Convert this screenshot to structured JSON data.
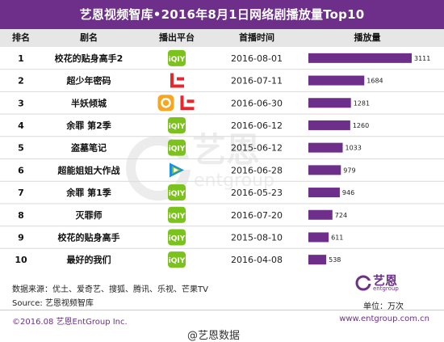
{
  "title": "艺恩视频智库•2016年8月1日网络剧播放量Top10",
  "headers": {
    "rank": "排名",
    "drama": "剧名",
    "platform": "播出平台",
    "date": "首播时间",
    "plays": "播放量"
  },
  "chart_data": {
    "type": "bar",
    "title": "艺恩视频智库•2016年8月1日网络剧播放量Top10",
    "ylabel": "播放量",
    "unit": "万次",
    "ranks": [
      "1",
      "2",
      "3",
      "4",
      "5",
      "6",
      "7",
      "8",
      "9",
      "10"
    ],
    "categories": [
      "校花的贴身高手2",
      "超少年密码",
      "半妖倾城",
      "余罪 第2季",
      "盗墓笔记",
      "超能姐姐大作战",
      "余罪 第1季",
      "灭罪师",
      "校花的贴身高手",
      "最好的我们"
    ],
    "platforms": [
      [
        "iqiyi"
      ],
      [
        "letv"
      ],
      [
        "youku",
        "letv"
      ],
      [
        "iqiyi"
      ],
      [
        "iqiyi"
      ],
      [
        "tencent"
      ],
      [
        "iqiyi"
      ],
      [
        "iqiyi"
      ],
      [
        "iqiyi"
      ],
      [
        "iqiyi"
      ]
    ],
    "dates": [
      "2016-08-01",
      "2016-07-11",
      "2016-06-30",
      "2016-06-12",
      "2015-06-12",
      "2016-06-28",
      "2016-05-23",
      "2016-07-20",
      "2015-08-10",
      "2016-04-08"
    ],
    "values": [
      3111,
      1684,
      1281,
      1260,
      1033,
      979,
      946,
      724,
      611,
      538
    ],
    "bar_color": "#6d2f8a"
  },
  "colors": {
    "accent": "#6d2f8a",
    "header_bg": "#e6e6e6",
    "iqiyi": "#7cc21c",
    "letv": "#e8262b",
    "youku": "#f5a623",
    "tencent_blue": "#1a8fe3"
  },
  "footer": {
    "source_label": "数据来源：优土、爱奇艺、搜狐、腾讯、乐视、芒果TV",
    "source_en": "Source: 艺恩视频智库",
    "unit": "单位：万次",
    "copyright": "©2016.08 艺恩EntGroup Inc.",
    "website": "www.entgroup.com.cn",
    "weibo": "@艺恩数据",
    "brand": "艺恩",
    "brand_sub": "entgroup"
  },
  "watermark": {
    "brand": "艺恩",
    "brand_sub": "entgroup"
  }
}
